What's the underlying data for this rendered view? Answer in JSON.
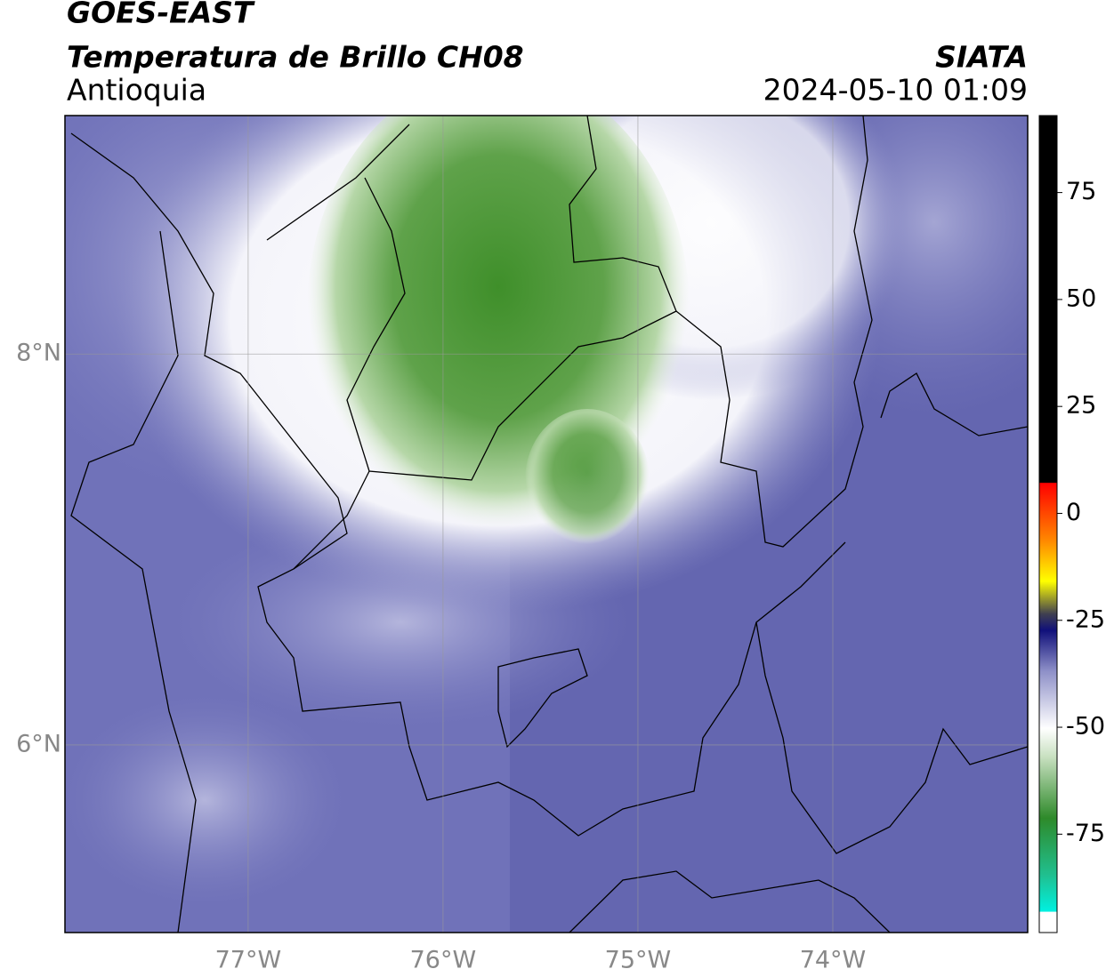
{
  "header": {
    "title": "GOES-EAST",
    "subtitle": "Temperatura de Brillo CH08",
    "region": "Antioquia",
    "source": "SIATA",
    "datetime": "2024-05-10 01:09"
  },
  "map": {
    "xlim": [
      -77.94,
      -73.0
    ],
    "ylim": [
      5.04,
      9.22
    ],
    "xticks": [
      {
        "value": -77,
        "label": "77°W"
      },
      {
        "value": -76,
        "label": "76°W"
      },
      {
        "value": -75,
        "label": "75°W"
      },
      {
        "value": -74,
        "label": "74°W"
      }
    ],
    "yticks": [
      {
        "value": 8,
        "label": "8°N"
      },
      {
        "value": 6,
        "label": "6°N"
      }
    ]
  },
  "colorbar": {
    "lim": [
      -98,
      93
    ],
    "ticks": [
      75,
      50,
      25,
      0,
      -25,
      -50,
      -75
    ]
  }
}
